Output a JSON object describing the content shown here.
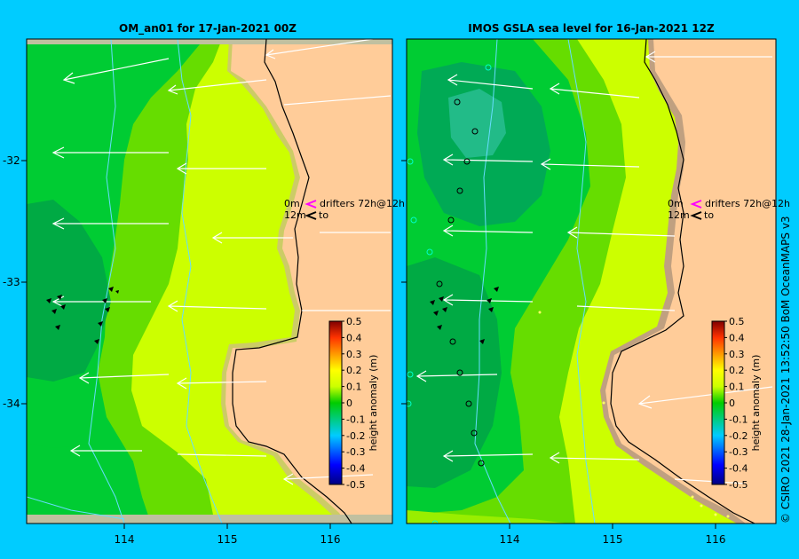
{
  "panels": [
    {
      "title": "OM_an01  for 17-Jan-2021 00Z"
    },
    {
      "title": "IMOS GSLA sea level   for 16-Jan-2021 12Z"
    }
  ],
  "axes": {
    "lon_ticks": [
      "114",
      "115",
      "116"
    ],
    "lat_ticks": [
      "-32",
      "-33",
      "-34"
    ]
  },
  "legend": {
    "line1_left": "0m",
    "line1_right": "drifters 72h@12h",
    "line2_left": "12m",
    "line2_right": "to",
    "drifter_color": "#ff00ff"
  },
  "colorbar": {
    "label": "height anomaly (m)",
    "ticks": [
      "0.5",
      "0.4",
      "0.3",
      "0.2",
      "0.1",
      "0",
      "-0.1",
      "-0.2",
      "-0.3",
      "-0.4",
      "-0.5"
    ]
  },
  "credit": "© CSIRO 2021   28-Jan-2021 13:52:50 BoM OceanMAPS v3",
  "colors": {
    "background": "#00ccff",
    "land": "#ffcc99",
    "shelf_land": "#c0a080",
    "contour": "#66ddff"
  }
}
